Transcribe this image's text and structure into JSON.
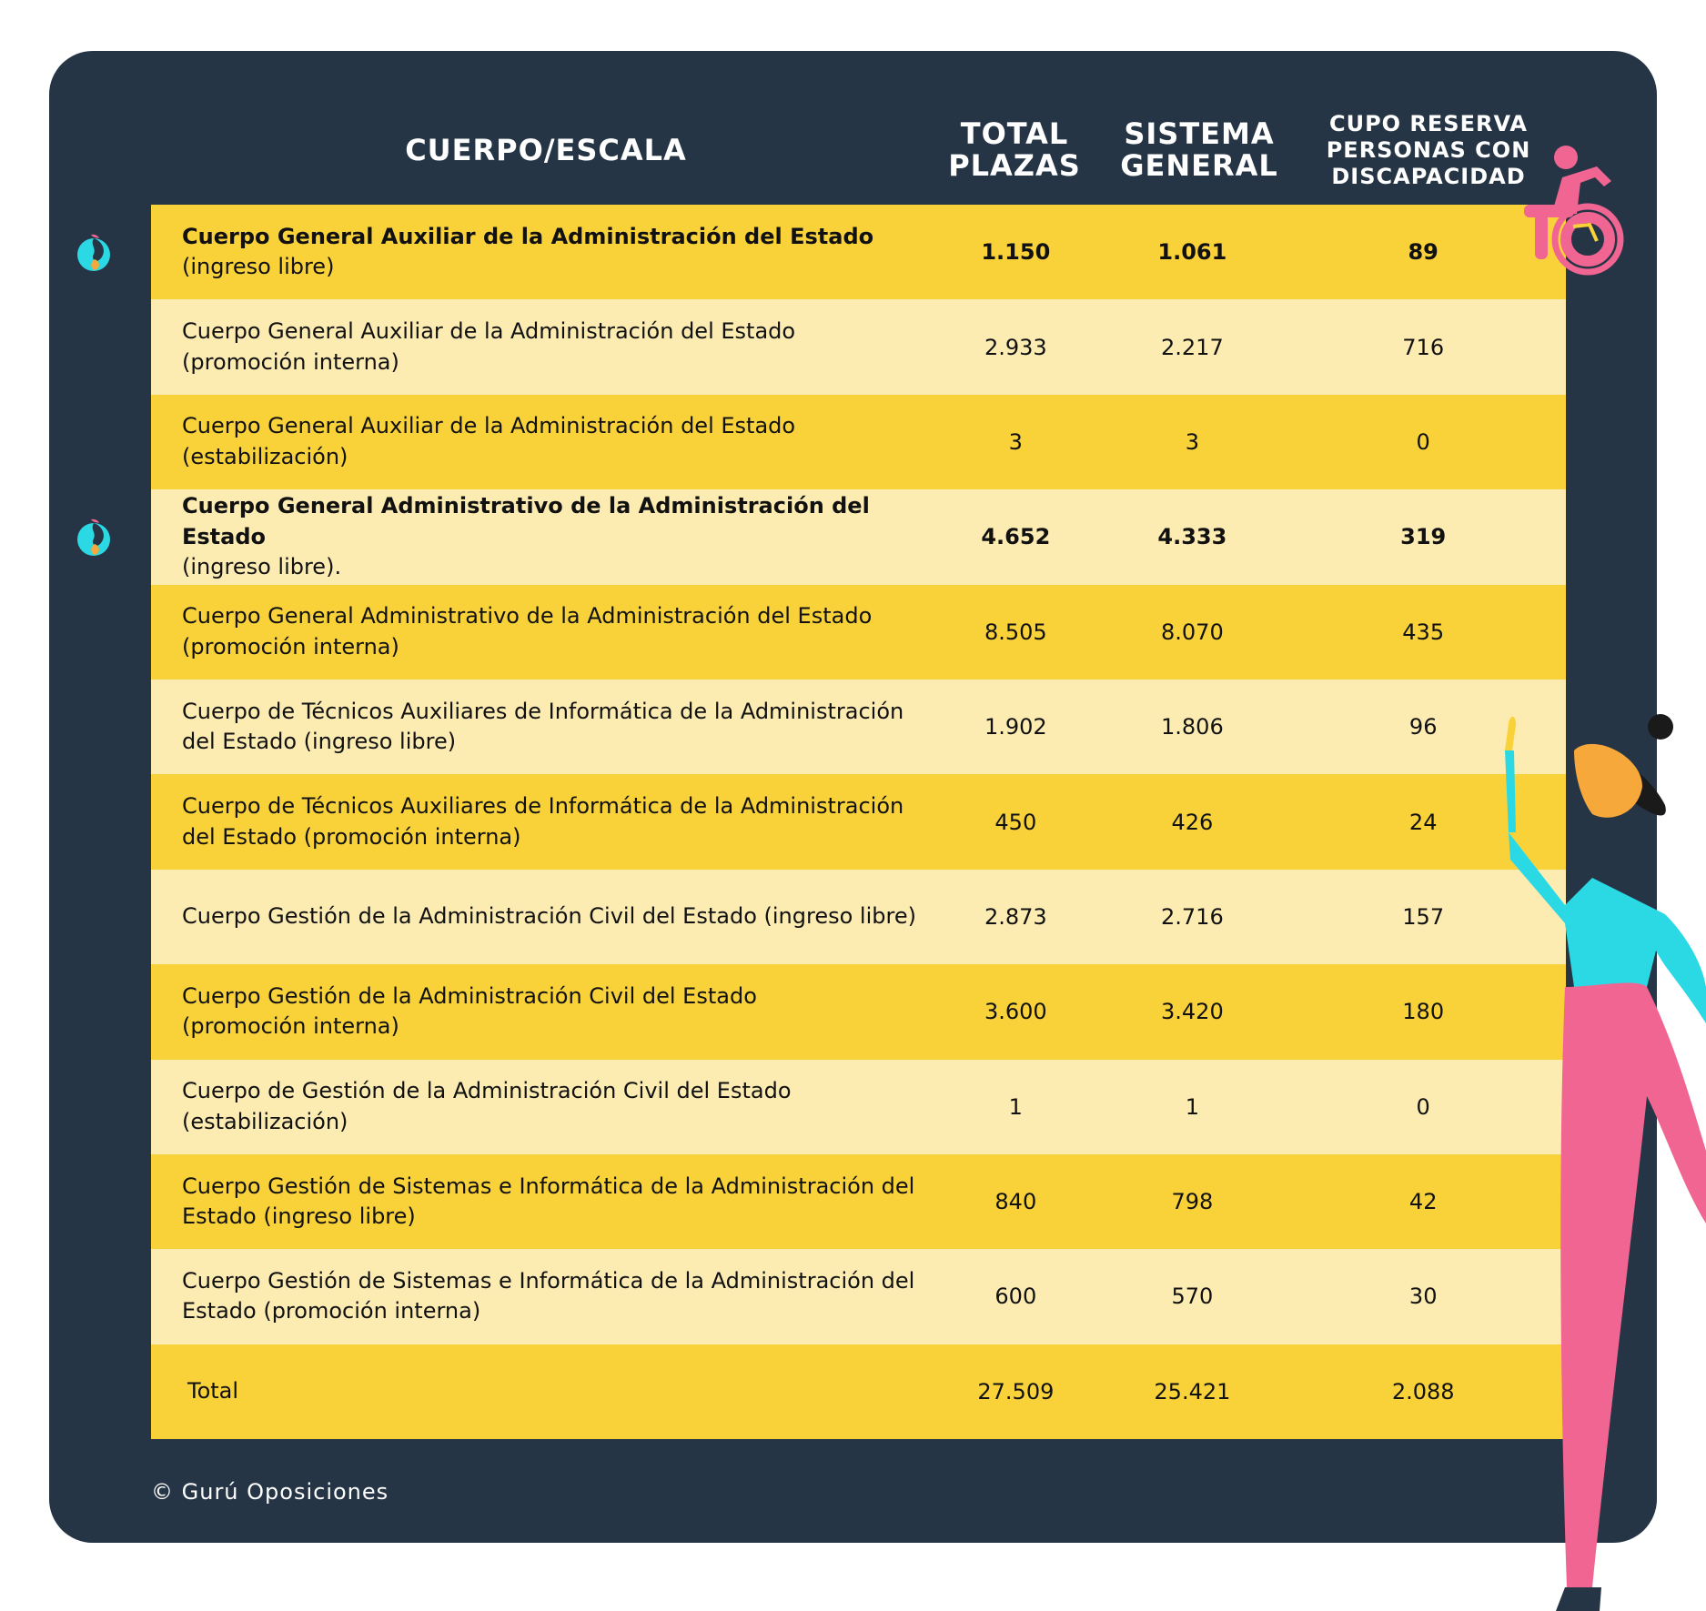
{
  "header": {
    "cuerpo": "CUERPO/ESCALA",
    "total_line1": "TOTAL",
    "total_line2": "PLAZAS",
    "sistema_line1": "SISTEMA",
    "sistema_line2": "GENERAL",
    "cupo_line1": "CUPO RESERVA",
    "cupo_line2": "PERSONAS CON",
    "cupo_line3": "DISCAPACIDAD"
  },
  "rows": [
    {
      "name": "Cuerpo General Auxiliar de la Administración del Estado",
      "detail": "(ingreso libre)",
      "total": "1.150",
      "sistema": "1.061",
      "cupo": "89"
    },
    {
      "name": "Cuerpo General Auxiliar de la Administración del Estado",
      "detail": "(promoción interna)",
      "total": "2.933",
      "sistema": "2.217",
      "cupo": "716"
    },
    {
      "name": "Cuerpo General Auxiliar de la Administración del Estado",
      "detail": "(estabilización)",
      "total": "3",
      "sistema": "3",
      "cupo": "0"
    },
    {
      "name": "Cuerpo General Administrativo de la Administración del Estado",
      "detail": "(ingreso libre).",
      "total": "4.652",
      "sistema": "4.333",
      "cupo": "319"
    },
    {
      "name": "Cuerpo General Administrativo de la Administración del Estado",
      "detail": "(promoción interna)",
      "total": "8.505",
      "sistema": "8.070",
      "cupo": "435"
    },
    {
      "name": "Cuerpo de Técnicos Auxiliares de Informática de la Administración",
      "detail": "del Estado (ingreso libre)",
      "total": "1.902",
      "sistema": "1.806",
      "cupo": "96"
    },
    {
      "name": "Cuerpo de Técnicos Auxiliares de Informática de la Administración",
      "detail": "del Estado (promoción interna)",
      "total": "450",
      "sistema": "426",
      "cupo": "24"
    },
    {
      "name": "Cuerpo Gestión de la Administración Civil del Estado (ingreso libre)",
      "detail": "",
      "total": "2.873",
      "sistema": "2.716",
      "cupo": "157"
    },
    {
      "name": "Cuerpo Gestión de la Administración Civil del Estado",
      "detail": "(promoción interna)",
      "total": "3.600",
      "sistema": "3.420",
      "cupo": "180"
    },
    {
      "name": "Cuerpo de Gestión de la Administración Civil del Estado",
      "detail": "(estabilización)",
      "total": "1",
      "sistema": "1",
      "cupo": "0"
    },
    {
      "name": "Cuerpo Gestión de Sistemas e Informática de la Administración del",
      "detail": "Estado (ingreso libre)",
      "total": "840",
      "sistema": "798",
      "cupo": "42"
    },
    {
      "name": "Cuerpo Gestión de Sistemas e Informática de la Administración del",
      "detail": "Estado (promoción interna)",
      "total": "600",
      "sistema": "570",
      "cupo": "30"
    }
  ],
  "total_row": {
    "label": "Total",
    "total": "27.509",
    "sistema": "25.421",
    "cupo": "2.088"
  },
  "copyright": "© Gurú Oposiciones",
  "colors": {
    "panel": "#253545",
    "row_dark": "#f9d23a",
    "row_light": "#fdecb2",
    "accent_pink": "#f06592",
    "accent_cyan": "#2bd9e4"
  },
  "icons": [
    "guru-logo-icon",
    "wheelchair-icon"
  ]
}
